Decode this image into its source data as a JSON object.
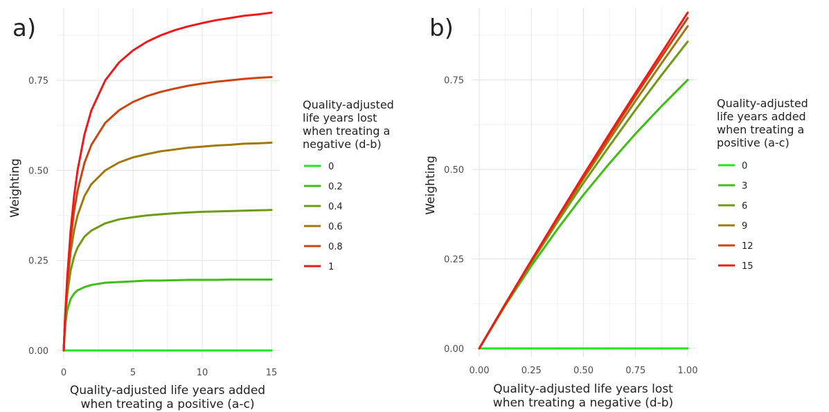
{
  "chart_data": [
    {
      "panel": "a)",
      "type": "line",
      "xlabel": [
        "Quality-adjusted life years added",
        "when treating a positive (a-c)"
      ],
      "ylabel": "Weighting",
      "xlim": [
        0,
        15
      ],
      "ylim": [
        0,
        0.95
      ],
      "x_ticks": [
        0,
        5,
        10,
        15
      ],
      "x_tick_labels": [
        "0",
        "5",
        "10",
        "15"
      ],
      "y_ticks": [
        0,
        0.25,
        0.5,
        0.75
      ],
      "y_tick_labels": [
        "0.00",
        "0.25",
        "0.50",
        "0.75"
      ],
      "grid": true,
      "legend_position": "right",
      "legend_title": [
        "Quality-adjusted",
        "life years lost",
        "when treating a",
        "negative (d-b)"
      ],
      "x": [
        0,
        0.1,
        0.25,
        0.5,
        0.75,
        1,
        1.5,
        2,
        3,
        4,
        5,
        6,
        7,
        8,
        9,
        10,
        11,
        12,
        13,
        14,
        15
      ],
      "series": [
        {
          "name": "0",
          "color": "#1ee61e",
          "values": [
            0,
            0,
            0,
            0,
            0,
            0,
            0,
            0,
            0,
            0,
            0,
            0,
            0,
            0,
            0,
            0,
            0,
            0,
            0,
            0,
            0
          ]
        },
        {
          "name": "0.2",
          "color": "#3fbf16",
          "values": [
            0,
            0.067,
            0.111,
            0.143,
            0.158,
            0.167,
            0.176,
            0.182,
            0.188,
            0.19,
            0.192,
            0.194,
            0.194,
            0.195,
            0.196,
            0.196,
            0.196,
            0.197,
            0.197,
            0.197,
            0.197
          ]
        },
        {
          "name": "0.4",
          "color": "#6e9a14",
          "values": [
            0,
            0.08,
            0.154,
            0.222,
            0.261,
            0.286,
            0.316,
            0.333,
            0.353,
            0.364,
            0.37,
            0.375,
            0.378,
            0.381,
            0.383,
            0.385,
            0.386,
            0.387,
            0.388,
            0.389,
            0.39
          ]
        },
        {
          "name": "0.6",
          "color": "#a0780e",
          "values": [
            0,
            0.086,
            0.176,
            0.273,
            0.333,
            0.375,
            0.429,
            0.462,
            0.5,
            0.522,
            0.536,
            0.545,
            0.553,
            0.558,
            0.563,
            0.566,
            0.569,
            0.571,
            0.574,
            0.575,
            0.577
          ]
        },
        {
          "name": "0.8",
          "color": "#cc4410",
          "values": [
            0,
            0.089,
            0.19,
            0.308,
            0.387,
            0.444,
            0.521,
            0.571,
            0.632,
            0.667,
            0.69,
            0.706,
            0.718,
            0.727,
            0.735,
            0.741,
            0.746,
            0.75,
            0.754,
            0.757,
            0.759
          ]
        },
        {
          "name": "1",
          "color": "#ee1a1a",
          "values": [
            0,
            0.091,
            0.2,
            0.333,
            0.429,
            0.5,
            0.6,
            0.667,
            0.75,
            0.8,
            0.833,
            0.857,
            0.875,
            0.889,
            0.9,
            0.909,
            0.917,
            0.923,
            0.929,
            0.933,
            0.938
          ]
        }
      ]
    },
    {
      "panel": "b)",
      "type": "line",
      "xlabel": [
        "Quality-adjusted life years lost",
        "when treating a negative (d-b)"
      ],
      "ylabel": "Weighting",
      "xlim": [
        0,
        1
      ],
      "ylim": [
        0,
        0.95
      ],
      "x_ticks": [
        0,
        0.25,
        0.5,
        0.75,
        1
      ],
      "x_tick_labels": [
        "0.00",
        "0.25",
        "0.50",
        "0.75",
        "1.00"
      ],
      "y_ticks": [
        0,
        0.25,
        0.5,
        0.75
      ],
      "y_tick_labels": [
        "0.00",
        "0.25",
        "0.50",
        "0.75"
      ],
      "grid": true,
      "legend_position": "right",
      "legend_title": [
        "Quality-adjusted",
        "life years added",
        "when treating a",
        "positive (a-c)"
      ],
      "x": [
        0,
        0.125,
        0.25,
        0.375,
        0.5,
        0.625,
        0.75,
        0.875,
        1
      ],
      "series": [
        {
          "name": "0",
          "color": "#1ee61e",
          "values": [
            0,
            0,
            0,
            0,
            0,
            0,
            0,
            0,
            0
          ]
        },
        {
          "name": "3",
          "color": "#3fbf16",
          "values": [
            0,
            0.12,
            0.231,
            0.333,
            0.429,
            0.517,
            0.6,
            0.677,
            0.75
          ]
        },
        {
          "name": "6",
          "color": "#6e9a14",
          "values": [
            0,
            0.122,
            0.24,
            0.353,
            0.462,
            0.566,
            0.667,
            0.764,
            0.857
          ]
        },
        {
          "name": "9",
          "color": "#a0780e",
          "values": [
            0,
            0.123,
            0.243,
            0.36,
            0.474,
            0.584,
            0.692,
            0.797,
            0.9
          ]
        },
        {
          "name": "12",
          "color": "#cc4410",
          "values": [
            0,
            0.124,
            0.245,
            0.364,
            0.48,
            0.594,
            0.706,
            0.815,
            0.923
          ]
        },
        {
          "name": "15",
          "color": "#ee1a1a",
          "values": [
            0,
            0.124,
            0.246,
            0.366,
            0.484,
            0.6,
            0.714,
            0.826,
            0.938
          ]
        }
      ]
    }
  ]
}
